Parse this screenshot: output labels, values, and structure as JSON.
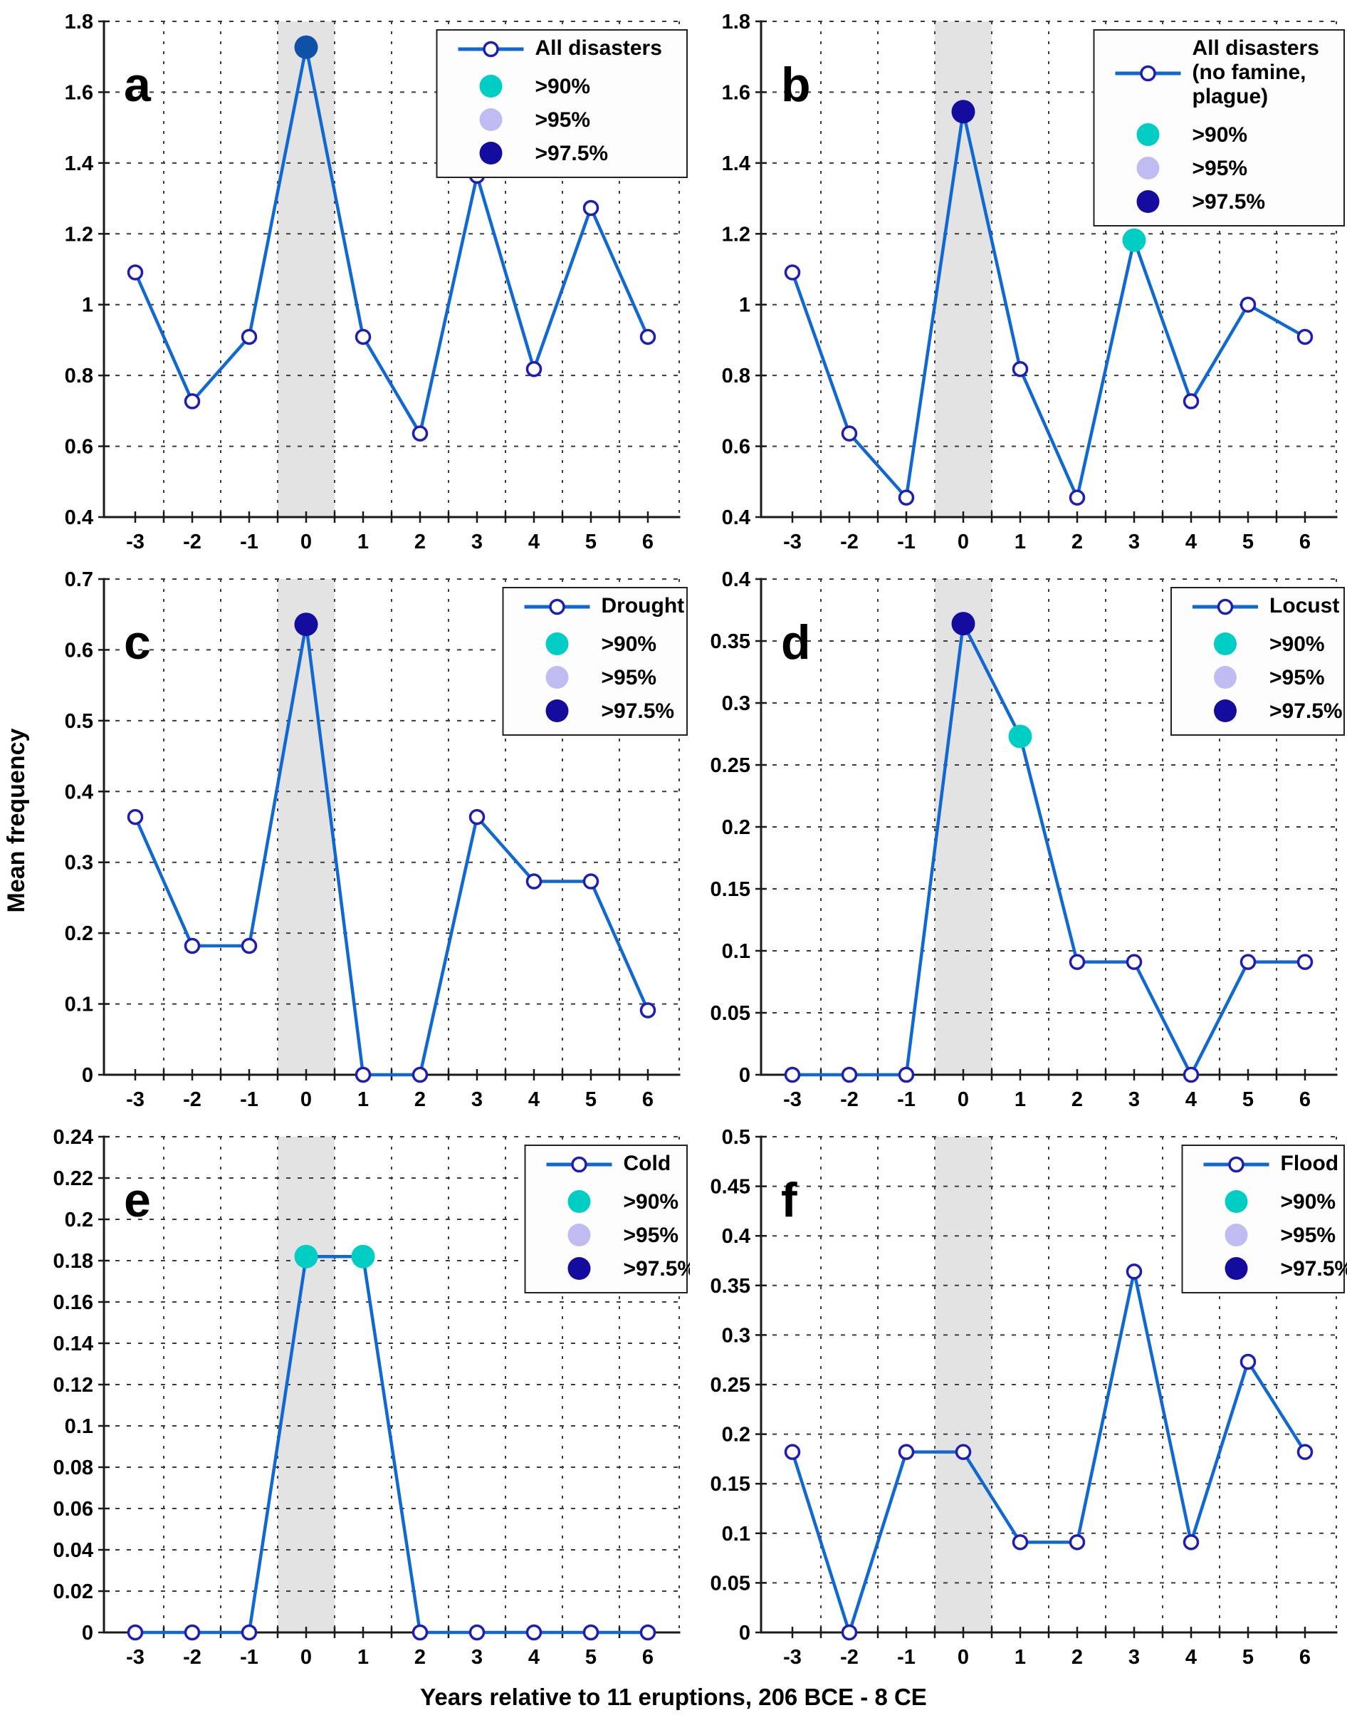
{
  "figure": {
    "xlabel": "Years relative to 11 eruptions, 206 BCE - 8 CE",
    "ylabel": "Mean frequency"
  },
  "colors": {
    "line": "#1068D2",
    "marker_ring": "#1E1EB4",
    "marker_fill": "#FFFFFF",
    "sig_90": "#00CEC4",
    "sig_95": "#C0BCF2",
    "sig_975": "#140C9E",
    "sig_975_panel_a": "#0F51A6",
    "band": "#E3E3E3",
    "grid": "#3C3C3C",
    "axis": "#1A1A1A",
    "text": "#000000",
    "legend_bg": "#FDFDFE",
    "legend_border": "#222222"
  },
  "significance_levels": [
    {
      "key": "sig_90",
      "label": ">90%"
    },
    {
      "key": "sig_95",
      "label": ">95%"
    },
    {
      "key": "sig_975",
      "label": ">97.5%"
    }
  ],
  "x_tick_labels": [
    "-3",
    "-2",
    "-1",
    "0",
    "1",
    "2",
    "3",
    "4",
    "5",
    "6"
  ],
  "chart_data": [
    {
      "type": "line",
      "panel_letter": "a",
      "legend_title_lines": [
        "All disasters"
      ],
      "x": [
        -3,
        -2,
        -1,
        0,
        1,
        2,
        3,
        4,
        5,
        6
      ],
      "values": [
        1.091,
        0.727,
        0.909,
        1.727,
        0.909,
        0.636,
        1.364,
        0.818,
        1.273,
        0.909
      ],
      "ylim": [
        0.4,
        1.8
      ],
      "ytick_labels": [
        "0.4",
        "0.6",
        "0.8",
        "1",
        "1.2",
        "1.4",
        "1.6",
        "1.8"
      ],
      "significant_points": [
        {
          "x": 0,
          "level": "sig_975",
          "color": "sig_975_panel_a"
        }
      ],
      "shaded_band_x": [
        -0.5,
        0.5
      ],
      "grid": true,
      "legend_position": "top-right"
    },
    {
      "type": "line",
      "panel_letter": "b",
      "legend_title_lines": [
        "All disasters",
        "(no famine,",
        "plague)"
      ],
      "x": [
        -3,
        -2,
        -1,
        0,
        1,
        2,
        3,
        4,
        5,
        6
      ],
      "values": [
        1.091,
        0.636,
        0.455,
        1.545,
        0.818,
        0.455,
        1.182,
        0.727,
        1.0,
        0.909
      ],
      "ylim": [
        0.4,
        1.8
      ],
      "ytick_labels": [
        "0.4",
        "0.6",
        "0.8",
        "1",
        "1.2",
        "1.4",
        "1.6",
        "1.8"
      ],
      "significant_points": [
        {
          "x": 0,
          "level": "sig_975"
        },
        {
          "x": 3,
          "level": "sig_90"
        }
      ],
      "shaded_band_x": [
        -0.5,
        0.5
      ],
      "grid": true,
      "legend_position": "top-right"
    },
    {
      "type": "line",
      "panel_letter": "c",
      "legend_title_lines": [
        "Drought"
      ],
      "x": [
        -3,
        -2,
        -1,
        0,
        1,
        2,
        3,
        4,
        5,
        6
      ],
      "values": [
        0.364,
        0.182,
        0.182,
        0.636,
        0,
        0,
        0.364,
        0.273,
        0.273,
        0.091
      ],
      "ylim": [
        0,
        0.7
      ],
      "ytick_labels": [
        "0",
        "0.1",
        "0.2",
        "0.3",
        "0.4",
        "0.5",
        "0.6",
        "0.7"
      ],
      "significant_points": [
        {
          "x": 0,
          "level": "sig_975"
        }
      ],
      "shaded_band_x": [
        -0.5,
        0.5
      ],
      "grid": true,
      "legend_position": "top-right"
    },
    {
      "type": "line",
      "panel_letter": "d",
      "legend_title_lines": [
        "Locust"
      ],
      "x": [
        -3,
        -2,
        -1,
        0,
        1,
        2,
        3,
        4,
        5,
        6
      ],
      "values": [
        0,
        0,
        0,
        0.364,
        0.273,
        0.091,
        0.091,
        0,
        0.091,
        0.091
      ],
      "ylim": [
        0,
        0.4
      ],
      "ytick_labels": [
        "0",
        "0.05",
        "0.1",
        "0.15",
        "0.2",
        "0.25",
        "0.3",
        "0.35",
        "0.4"
      ],
      "significant_points": [
        {
          "x": 0,
          "level": "sig_975"
        },
        {
          "x": 1,
          "level": "sig_90"
        }
      ],
      "shaded_band_x": [
        -0.5,
        0.5
      ],
      "grid": true,
      "legend_position": "top-right"
    },
    {
      "type": "line",
      "panel_letter": "e",
      "legend_title_lines": [
        "Cold"
      ],
      "x": [
        -3,
        -2,
        -1,
        0,
        1,
        2,
        3,
        4,
        5,
        6
      ],
      "values": [
        0,
        0,
        0,
        0.182,
        0.182,
        0,
        0,
        0,
        0,
        0
      ],
      "ylim": [
        0,
        0.24
      ],
      "ytick_labels": [
        "0",
        "0.02",
        "0.04",
        "0.06",
        "0.08",
        "0.1",
        "0.12",
        "0.14",
        "0.16",
        "0.18",
        "0.2",
        "0.22",
        "0.24"
      ],
      "significant_points": [
        {
          "x": 0,
          "level": "sig_90"
        },
        {
          "x": 1,
          "level": "sig_90"
        }
      ],
      "shaded_band_x": [
        -0.5,
        0.5
      ],
      "grid": true,
      "legend_position": "top-right"
    },
    {
      "type": "line",
      "panel_letter": "f",
      "legend_title_lines": [
        "Flood"
      ],
      "x": [
        -3,
        -2,
        -1,
        0,
        1,
        2,
        3,
        4,
        5,
        6
      ],
      "values": [
        0.182,
        0,
        0.182,
        0.182,
        0.091,
        0.091,
        0.364,
        0.091,
        0.273,
        0.182
      ],
      "ylim": [
        0,
        0.5
      ],
      "ytick_labels": [
        "0",
        "0.05",
        "0.1",
        "0.15",
        "0.2",
        "0.25",
        "0.3",
        "0.35",
        "0.4",
        "0.45",
        "0.5"
      ],
      "significant_points": [],
      "shaded_band_x": [
        -0.5,
        0.5
      ],
      "grid": true,
      "legend_position": "top-right"
    }
  ]
}
